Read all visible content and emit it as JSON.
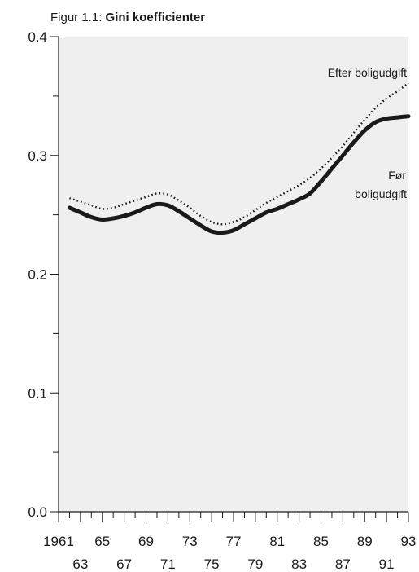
{
  "title_prefix": "Figur 1.1:",
  "title_bold": "Gini koefficienter",
  "chart_data": {
    "type": "line",
    "title": "Gini koefficienter",
    "xlabel": "",
    "ylabel": "",
    "xlim": [
      1961,
      1993
    ],
    "ylim": [
      0,
      0.4
    ],
    "y_ticks": [
      "0.0",
      "0.1",
      "0.2",
      "0.3",
      "0.4"
    ],
    "x_ticks_row1": [
      "1961",
      "65",
      "69",
      "73",
      "77",
      "81",
      "85",
      "89",
      "93"
    ],
    "x_ticks_row2": [
      "63",
      "67",
      "71",
      "75",
      "79",
      "83",
      "87",
      "91"
    ],
    "grid": false,
    "background": "#efefef",
    "series": [
      {
        "name": "Efter boligudgift",
        "style": "dotted",
        "x": [
          1962,
          1963,
          1964,
          1965,
          1966,
          1967,
          1968,
          1969,
          1970,
          1971,
          1972,
          1973,
          1974,
          1975,
          1976,
          1977,
          1978,
          1979,
          1980,
          1981,
          1982,
          1983,
          1984,
          1985,
          1986,
          1987,
          1988,
          1989,
          1990,
          1991,
          1992,
          1993
        ],
        "values": [
          0.264,
          0.261,
          0.258,
          0.255,
          0.256,
          0.259,
          0.262,
          0.265,
          0.268,
          0.267,
          0.262,
          0.256,
          0.249,
          0.244,
          0.242,
          0.244,
          0.248,
          0.254,
          0.26,
          0.265,
          0.27,
          0.275,
          0.281,
          0.289,
          0.298,
          0.308,
          0.319,
          0.33,
          0.34,
          0.348,
          0.354,
          0.361
        ]
      },
      {
        "name": "Før boligudgift",
        "style": "solid-thick",
        "x": [
          1962,
          1963,
          1964,
          1965,
          1966,
          1967,
          1968,
          1969,
          1970,
          1971,
          1972,
          1973,
          1974,
          1975,
          1976,
          1977,
          1978,
          1979,
          1980,
          1981,
          1982,
          1983,
          1984,
          1985,
          1986,
          1987,
          1988,
          1989,
          1990,
          1991,
          1992,
          1993
        ],
        "values": [
          0.256,
          0.252,
          0.248,
          0.246,
          0.247,
          0.249,
          0.252,
          0.256,
          0.259,
          0.258,
          0.253,
          0.247,
          0.241,
          0.236,
          0.235,
          0.237,
          0.242,
          0.247,
          0.252,
          0.255,
          0.259,
          0.263,
          0.268,
          0.278,
          0.289,
          0.3,
          0.311,
          0.321,
          0.328,
          0.331,
          0.332,
          0.333
        ]
      }
    ],
    "series_labels": {
      "efter": "Efter boligudgift",
      "foer_line1": "Før",
      "foer_line2": "boligudgift"
    }
  }
}
